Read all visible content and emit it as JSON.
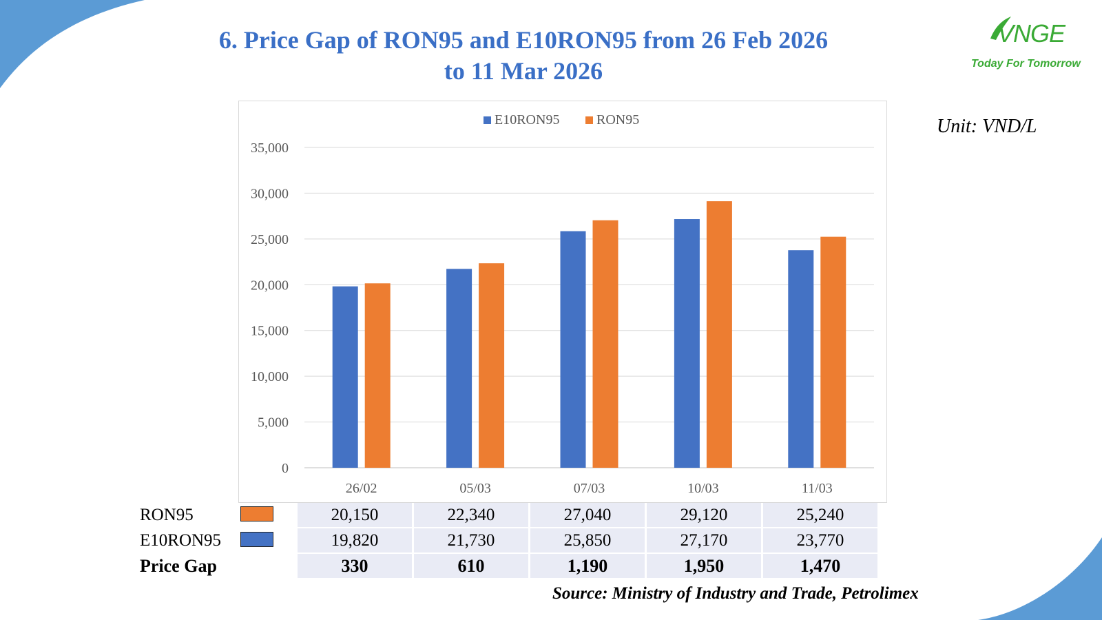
{
  "title_line1": "6. Price Gap of RON95 and E10RON95 from 26 Feb 2026",
  "title_line2": "to 11 Mar 2026",
  "logo": {
    "mark": "VNGE",
    "tagline": "Today For Tomorrow"
  },
  "unit_label": "Unit: VND/L",
  "source": "Source: Ministry of Industry and Trade, Petrolimex",
  "colors": {
    "e10ron95": "#4472c4",
    "ron95": "#ed7d31",
    "title": "#3a6fc6",
    "brand": "#3aaa35",
    "accent_blue": "#5b9bd5"
  },
  "chart_data": {
    "type": "bar",
    "categories": [
      "26/02",
      "05/03",
      "07/03",
      "10/03",
      "11/03"
    ],
    "series": [
      {
        "name": "E10RON95",
        "values": [
          19820,
          21730,
          25850,
          27170,
          23770
        ]
      },
      {
        "name": "RON95",
        "values": [
          20150,
          22340,
          27040,
          29120,
          25240
        ]
      }
    ],
    "yticks": [
      "0",
      "5,000",
      "10,000",
      "15,000",
      "20,000",
      "25,000",
      "30,000",
      "35,000"
    ],
    "ylim": [
      0,
      35000
    ],
    "legend": "top-center",
    "grid": true
  },
  "table": {
    "rows": [
      {
        "label": "RON95",
        "values": [
          "20,150",
          "22,340",
          "27,040",
          "29,120",
          "25,240"
        ]
      },
      {
        "label": "E10RON95",
        "values": [
          "19,820",
          "21,730",
          "25,850",
          "27,170",
          "23,770"
        ]
      },
      {
        "label": "Price Gap",
        "values": [
          "330",
          "610",
          "1,190",
          "1,950",
          "1,470"
        ]
      }
    ]
  }
}
